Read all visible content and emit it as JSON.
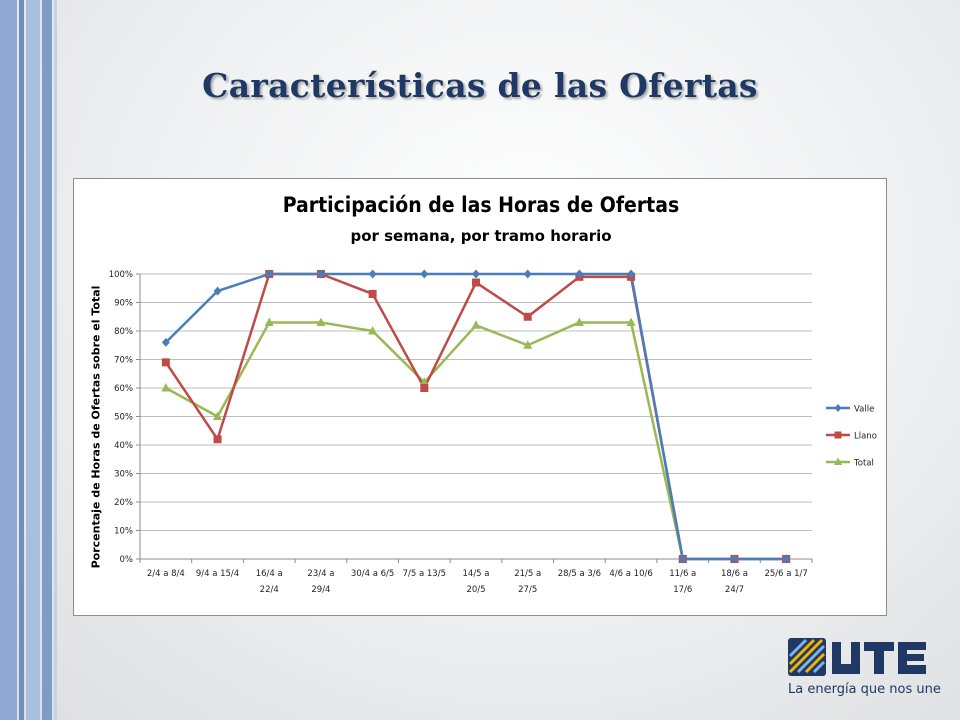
{
  "slide": {
    "title": "Características de las Ofertas",
    "tagline": "La energía que nos une",
    "logo_text": "UTE"
  },
  "colors": {
    "title": "#1f3864",
    "stripe_dark": "#6f8fbf",
    "stripe_light": "#a9bfdf",
    "valle": "#4a7ebb",
    "llano": "#be4b48",
    "total": "#98b954"
  },
  "chart_data": {
    "type": "line",
    "title": "Participación de las Horas de Ofertas",
    "subtitle": "por semana, por tramo horario",
    "ylabel": "Porcentaje de Horas de Ofertas sobre el Total",
    "xlabel": "",
    "ylim": [
      0,
      100
    ],
    "yticks": [
      "0%",
      "10%",
      "20%",
      "30%",
      "40%",
      "50%",
      "60%",
      "70%",
      "80%",
      "90%",
      "100%"
    ],
    "grid": true,
    "legend": "right",
    "categories": [
      [
        "2/4 a 8/4"
      ],
      [
        "9/4 a 15/4"
      ],
      [
        "16/4 a",
        "22/4"
      ],
      [
        "23/4 a",
        "29/4"
      ],
      [
        "30/4 a 6/5"
      ],
      [
        "7/5 a 13/5"
      ],
      [
        "14/5 a",
        "20/5"
      ],
      [
        "21/5 a",
        "27/5"
      ],
      [
        "28/5 a 3/6"
      ],
      [
        "4/6 a 10/6"
      ],
      [
        "11/6 a",
        "17/6"
      ],
      [
        "18/6 a",
        "24/7"
      ],
      [
        "25/6 a 1/7"
      ]
    ],
    "series": [
      {
        "name": "Valle",
        "marker": "diamond",
        "color": "#4a7ebb",
        "values": [
          76,
          94,
          100,
          100,
          100,
          100,
          100,
          100,
          100,
          100,
          0,
          0,
          0
        ]
      },
      {
        "name": "Llano",
        "marker": "square",
        "color": "#be4b48",
        "values": [
          69,
          42,
          100,
          100,
          93,
          60,
          97,
          85,
          99,
          99,
          0,
          0,
          0
        ]
      },
      {
        "name": "Total",
        "marker": "triangle",
        "color": "#98b954",
        "values": [
          60,
          50,
          83,
          83,
          80,
          62,
          82,
          75,
          83,
          83,
          0,
          0,
          0
        ]
      }
    ]
  }
}
